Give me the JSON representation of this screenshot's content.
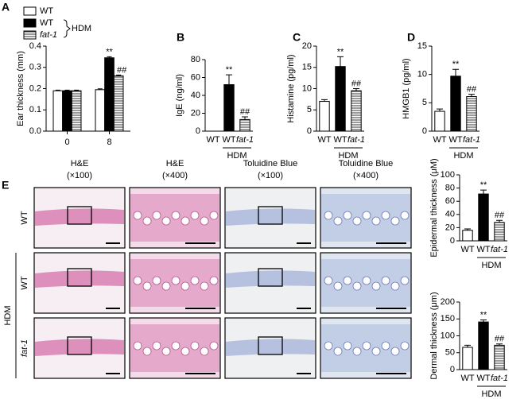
{
  "panel_labels": [
    "A",
    "B",
    "C",
    "D",
    "E"
  ],
  "chart_data": [
    {
      "type": "grouped-bar",
      "y_label": "Ear thickness (mm)",
      "categories": [
        "0",
        "8"
      ],
      "series": [
        {
          "name": "WT",
          "color": "#ffffff",
          "values": [
            0.19,
            0.195
          ],
          "errors": [
            0.003,
            0.004
          ]
        },
        {
          "name": "WT",
          "color": "#000000",
          "values": [
            0.19,
            0.345
          ],
          "errors": [
            0.003,
            0.005
          ],
          "significance": [
            null,
            "**"
          ]
        },
        {
          "name": "fat-1",
          "color": "#ffffff",
          "hatch": "horizontal",
          "values": [
            0.19,
            0.26
          ],
          "errors": [
            0.003,
            0.004
          ],
          "significance": [
            null,
            "##"
          ]
        }
      ],
      "legend_group_label": "HDM",
      "ylim": [
        0,
        0.4
      ],
      "yticks": [
        {
          "value": 0,
          "label": "0.0"
        },
        0.1,
        0.2,
        0.3,
        0.4
      ]
    },
    {
      "type": "bar",
      "y_label": "IgE (ng/ml)",
      "categories": [
        "WT",
        "WT",
        "fat-1"
      ],
      "colors": [
        "#ffffff",
        "#000000",
        "#ffffff"
      ],
      "hatches": [
        null,
        null,
        "horizontal"
      ],
      "values": [
        0,
        52,
        13
      ],
      "errors": [
        0,
        11,
        3
      ],
      "significance": [
        null,
        "**",
        "##"
      ],
      "group_label": "HDM",
      "ylim": [
        0,
        80
      ],
      "yticks": [
        0,
        20,
        40,
        60,
        80
      ]
    },
    {
      "type": "bar",
      "y_label": "Histamine  (pg/ml)",
      "categories": [
        "WT",
        "WT",
        "fat-1"
      ],
      "colors": [
        "#ffffff",
        "#000000",
        "#ffffff"
      ],
      "hatches": [
        null,
        null,
        "horizontal"
      ],
      "values": [
        7,
        15.2,
        9.5
      ],
      "errors": [
        0.4,
        2.3,
        0.5
      ],
      "significance": [
        null,
        "**",
        "##"
      ],
      "group_label": "HDM",
      "ylim": [
        0,
        20
      ],
      "yticks": [
        0,
        5,
        10,
        15,
        20
      ]
    },
    {
      "type": "bar",
      "y_label": "HMGB1 (pg/ml)",
      "categories": [
        "WT",
        "WT",
        "fat-1"
      ],
      "colors": [
        "#ffffff",
        "#000000",
        "#ffffff"
      ],
      "hatches": [
        null,
        null,
        "horizontal"
      ],
      "values": [
        3.5,
        9.7,
        6.1
      ],
      "errors": [
        0.4,
        1.2,
        0.4
      ],
      "significance": [
        null,
        "**",
        "##"
      ],
      "group_label": "HDM",
      "ylim": [
        0,
        15
      ],
      "yticks": [
        0,
        5,
        10,
        15
      ]
    },
    {
      "type": "bar",
      "y_label": "Epidermal thickness (μM)",
      "categories": [
        "WT",
        "WT",
        "fat-1"
      ],
      "colors": [
        "#ffffff",
        "#000000",
        "#ffffff"
      ],
      "hatches": [
        null,
        null,
        "horizontal"
      ],
      "values": [
        16,
        71,
        28
      ],
      "errors": [
        2,
        6,
        3
      ],
      "significance": [
        null,
        "**",
        "##"
      ],
      "group_label": "HDM",
      "ylim": [
        0,
        100
      ],
      "yticks": [
        0,
        20,
        40,
        60,
        80,
        100
      ]
    },
    {
      "type": "bar",
      "y_label": "Dermal thickness (μm)",
      "categories": [
        "WT",
        "WT",
        "fat-1"
      ],
      "colors": [
        "#ffffff",
        "#000000",
        "#ffffff"
      ],
      "hatches": [
        null,
        null,
        "horizontal"
      ],
      "values": [
        66,
        141,
        72
      ],
      "errors": [
        6,
        6,
        4
      ],
      "significance": [
        null,
        "**",
        "##"
      ],
      "group_label": "HDM",
      "ylim": [
        0,
        200
      ],
      "yticks": [
        0,
        50,
        100,
        150,
        200
      ]
    }
  ],
  "histology": {
    "columns": [
      {
        "stain": "H&E",
        "magnification": "(×100)"
      },
      {
        "stain": "H&E",
        "magnification": "(×400)"
      },
      {
        "stain": "Toluidine Blue",
        "magnification": "(×100)"
      },
      {
        "stain": "Toluidine Blue",
        "magnification": "(×400)"
      }
    ],
    "rows": [
      "WT",
      "WT",
      "fat-1"
    ],
    "group_label": "HDM"
  }
}
